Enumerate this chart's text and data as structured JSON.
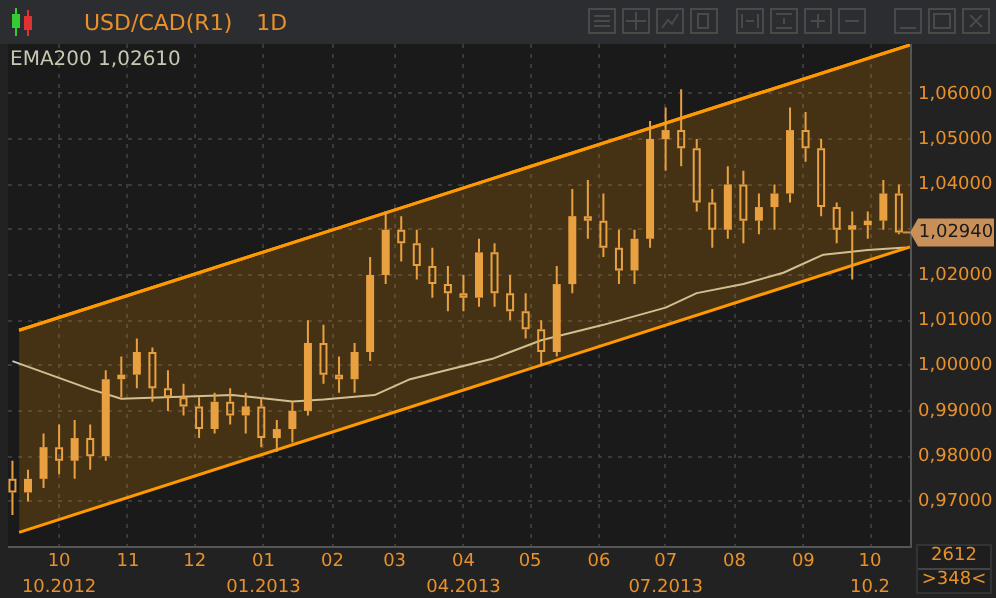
{
  "chart_data": {
    "type": "candlestick",
    "title": "USD/CAD(R1)",
    "subtitle": "1D",
    "xlim": [
      "2012-09-08",
      "2013-10-19"
    ],
    "xticks": [
      {
        "value": "2012-10-01",
        "label": "10"
      },
      {
        "value": "2012-11-01",
        "label": "11"
      },
      {
        "value": "2012-12-01",
        "label": "12"
      },
      {
        "value": "2013-01-01",
        "label": "01"
      },
      {
        "value": "2013-02-01",
        "label": "02"
      },
      {
        "value": "2013-03-01",
        "label": "03"
      },
      {
        "value": "2013-04-01",
        "label": "04"
      },
      {
        "value": "2013-05-01",
        "label": "05"
      },
      {
        "value": "2013-06-01",
        "label": "06"
      },
      {
        "value": "2013-07-01",
        "label": "07"
      },
      {
        "value": "2013-08-01",
        "label": "08"
      },
      {
        "value": "2013-09-01",
        "label": "09"
      },
      {
        "value": "2013-10-01",
        "label": "10"
      }
    ],
    "x2lim": [
      "2012-09-08",
      "2013-10-19"
    ],
    "x2ticks": [
      {
        "value": "2012-10-01",
        "label": "10.2012"
      },
      {
        "value": "2013-01-01",
        "label": "01.2013"
      },
      {
        "value": "2013-04-01",
        "label": "04.2013"
      },
      {
        "value": "2013-07-01",
        "label": "07.2013"
      },
      {
        "value": "2013-10-01",
        "label": "10.2"
      }
    ],
    "ylim": [
      0.96,
      1.071
    ],
    "yticks": [
      {
        "value": 0.97,
        "label": "0,97000"
      },
      {
        "value": 0.98,
        "label": "0,98000"
      },
      {
        "value": 0.99,
        "label": "0,99000"
      },
      {
        "value": 1.0,
        "label": "1,00000"
      },
      {
        "value": 1.01,
        "label": "1,01000"
      },
      {
        "value": 1.02,
        "label": "1,02000"
      },
      {
        "value": 1.03,
        "label": null
      },
      {
        "value": 1.04,
        "label": "1,04000"
      },
      {
        "value": 1.05,
        "label": "1,05000"
      },
      {
        "value": 1.06,
        "label": "1,06000"
      }
    ],
    "grid": true,
    "legend": "top left",
    "series": [
      {
        "type": "line",
        "color": "#ff9900",
        "x": [
          "2012-09-13",
          "2013-10-19"
        ],
        "values": [
          1.0078,
          1.0708
        ],
        "lower": [
          0.9632,
          1.0262
        ],
        "upper": [
          1.0078,
          1.0708
        ]
      },
      {
        "type": "line",
        "name": "EMA200 1,02610",
        "color": "#c8c8b0",
        "x": [
          "2012-09-10",
          "2012-10-15",
          "2012-10-29",
          "2012-12-18",
          "2013-01-14",
          "2013-01-28",
          "2013-02-20",
          "2013-03-08",
          "2013-04-14",
          "2013-05-06",
          "2013-06-03",
          "2013-07-01",
          "2013-07-15",
          "2013-08-05",
          "2013-08-23",
          "2013-09-10",
          "2013-09-30",
          "2013-10-17"
        ],
        "values": [
          1.001,
          0.9948,
          0.9927,
          0.9935,
          0.9921,
          0.9925,
          0.9935,
          0.997,
          1.0015,
          1.0056,
          1.009,
          1.0128,
          1.016,
          1.018,
          1.0205,
          1.0245,
          1.0255,
          1.0261
        ]
      },
      {
        "color": "#e8a040",
        "x": [
          "2012-09-10",
          "2012-09-17",
          "2012-09-24",
          "2012-10-01",
          "2012-10-08",
          "2012-10-15",
          "2012-10-22",
          "2012-10-29",
          "2012-11-05",
          "2012-11-12",
          "2012-11-19",
          "2012-11-26",
          "2012-12-03",
          "2012-12-10",
          "2012-12-17",
          "2012-12-24",
          "2012-12-31",
          "2013-01-07",
          "2013-01-14",
          "2013-01-21",
          "2013-01-28",
          "2013-02-04",
          "2013-02-11",
          "2013-02-18",
          "2013-02-25",
          "2013-03-04",
          "2013-03-11",
          "2013-03-18",
          "2013-03-25",
          "2013-04-01",
          "2013-04-08",
          "2013-04-15",
          "2013-04-22",
          "2013-04-29",
          "2013-05-06",
          "2013-05-13",
          "2013-05-20",
          "2013-05-27",
          "2013-06-03",
          "2013-06-10",
          "2013-06-17",
          "2013-06-24",
          "2013-07-01",
          "2013-07-08",
          "2013-07-15",
          "2013-07-22",
          "2013-07-29",
          "2013-08-05",
          "2013-08-12",
          "2013-08-19",
          "2013-08-26",
          "2013-09-02",
          "2013-09-09",
          "2013-09-16",
          "2013-09-23",
          "2013-09-30",
          "2013-10-07",
          "2013-10-14"
        ],
        "ohlc": [
          [
            0.975,
            0.979,
            0.967,
            0.972
          ],
          [
            0.972,
            0.977,
            0.97,
            0.975
          ],
          [
            0.975,
            0.985,
            0.973,
            0.982
          ],
          [
            0.982,
            0.987,
            0.976,
            0.979
          ],
          [
            0.979,
            0.988,
            0.975,
            0.984
          ],
          [
            0.984,
            0.987,
            0.977,
            0.98
          ],
          [
            0.98,
            0.999,
            0.979,
            0.997
          ],
          [
            0.997,
            1.002,
            0.993,
            0.998
          ],
          [
            0.998,
            1.006,
            0.995,
            1.003
          ],
          [
            1.003,
            1.004,
            0.992,
            0.995
          ],
          [
            0.995,
            0.999,
            0.99,
            0.993
          ],
          [
            0.993,
            0.996,
            0.989,
            0.991
          ],
          [
            0.991,
            0.993,
            0.984,
            0.986
          ],
          [
            0.986,
            0.994,
            0.985,
            0.992
          ],
          [
            0.992,
            0.995,
            0.987,
            0.989
          ],
          [
            0.989,
            0.994,
            0.985,
            0.991
          ],
          [
            0.991,
            0.993,
            0.982,
            0.984
          ],
          [
            0.984,
            0.988,
            0.981,
            0.986
          ],
          [
            0.986,
            0.992,
            0.983,
            0.99
          ],
          [
            0.99,
            1.01,
            0.989,
            1.005
          ],
          [
            1.005,
            1.009,
            0.996,
            0.998
          ],
          [
            0.998,
            1.002,
            0.994,
            0.997
          ],
          [
            0.997,
            1.005,
            0.994,
            1.003
          ],
          [
            1.003,
            1.024,
            1.001,
            1.02
          ],
          [
            1.02,
            1.034,
            1.018,
            1.03
          ],
          [
            1.03,
            1.033,
            1.023,
            1.027
          ],
          [
            1.027,
            1.03,
            1.019,
            1.022
          ],
          [
            1.022,
            1.026,
            1.015,
            1.018
          ],
          [
            1.018,
            1.022,
            1.012,
            1.016
          ],
          [
            1.016,
            1.02,
            1.012,
            1.015
          ],
          [
            1.015,
            1.028,
            1.013,
            1.025
          ],
          [
            1.025,
            1.027,
            1.013,
            1.016
          ],
          [
            1.016,
            1.02,
            1.01,
            1.012
          ],
          [
            1.012,
            1.016,
            1.006,
            1.008
          ],
          [
            1.008,
            1.01,
            1.0,
            1.003
          ],
          [
            1.003,
            1.022,
            1.002,
            1.018
          ],
          [
            1.018,
            1.039,
            1.016,
            1.033
          ],
          [
            1.033,
            1.041,
            1.028,
            1.032
          ],
          [
            1.032,
            1.038,
            1.024,
            1.026
          ],
          [
            1.026,
            1.03,
            1.018,
            1.021
          ],
          [
            1.021,
            1.03,
            1.018,
            1.028
          ],
          [
            1.028,
            1.054,
            1.026,
            1.05
          ],
          [
            1.05,
            1.057,
            1.043,
            1.052
          ],
          [
            1.052,
            1.061,
            1.044,
            1.048
          ],
          [
            1.048,
            1.05,
            1.034,
            1.036
          ],
          [
            1.036,
            1.039,
            1.026,
            1.03
          ],
          [
            1.03,
            1.044,
            1.028,
            1.04
          ],
          [
            1.04,
            1.043,
            1.027,
            1.032
          ],
          [
            1.032,
            1.038,
            1.029,
            1.035
          ],
          [
            1.035,
            1.04,
            1.03,
            1.038
          ],
          [
            1.038,
            1.057,
            1.036,
            1.052
          ],
          [
            1.052,
            1.056,
            1.045,
            1.048
          ],
          [
            1.048,
            1.05,
            1.033,
            1.035
          ],
          [
            1.035,
            1.036,
            1.027,
            1.03
          ],
          [
            1.03,
            1.034,
            1.019,
            1.031
          ],
          [
            1.031,
            1.034,
            1.028,
            1.032
          ],
          [
            1.032,
            1.041,
            1.03,
            1.038
          ],
          [
            1.038,
            1.04,
            1.029,
            1.0294
          ]
        ]
      }
    ],
    "annotations": [
      {
        "text": "1,02940",
        "x": "2013-10-14",
        "y": 1.0294
      },
      "2612",
      ">348<"
    ]
  }
}
